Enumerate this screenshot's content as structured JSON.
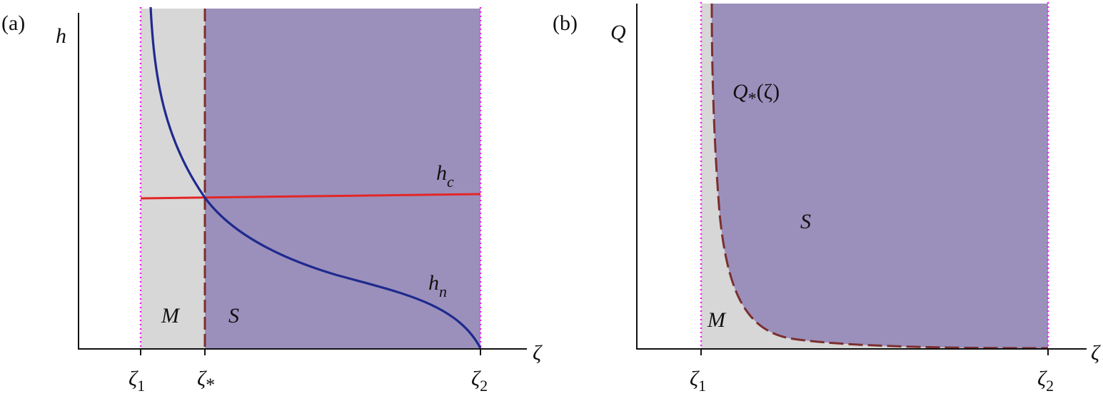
{
  "colors": {
    "region_M": "#d7d7d7",
    "region_S": "#9b90bc",
    "h_n_curve": "#1f2a8e",
    "h_c_line": "#e32626",
    "boundary_dashed": "#7b2f2f",
    "vertical_limits": "#f01ef0",
    "axes": "#111111",
    "Q_star_label": "#7b2f2f"
  },
  "panel_a": {
    "panel_label": "(a)",
    "y_axis_label": "h",
    "x_axis_label": "ζ",
    "ticks": [
      {
        "main": "ζ",
        "sub": "1"
      },
      {
        "main": "ζ",
        "sub": "*"
      },
      {
        "main": "ζ",
        "sub": "2"
      }
    ],
    "region_labels": {
      "M": "M",
      "S": "S"
    },
    "curve_labels": {
      "h_c": {
        "main": "h",
        "sub": "c"
      },
      "h_n": {
        "main": "h",
        "sub": "n"
      }
    }
  },
  "panel_b": {
    "panel_label": "(b)",
    "y_axis_label": "Q",
    "x_axis_label": "ζ",
    "ticks": [
      {
        "main": "ζ",
        "sub": "1"
      },
      {
        "main": "ζ",
        "sub": "2"
      }
    ],
    "region_labels": {
      "M": "M",
      "S": "S"
    },
    "curve_label": {
      "main": "Q",
      "sub": "*",
      "arg": "(ζ)"
    }
  }
}
